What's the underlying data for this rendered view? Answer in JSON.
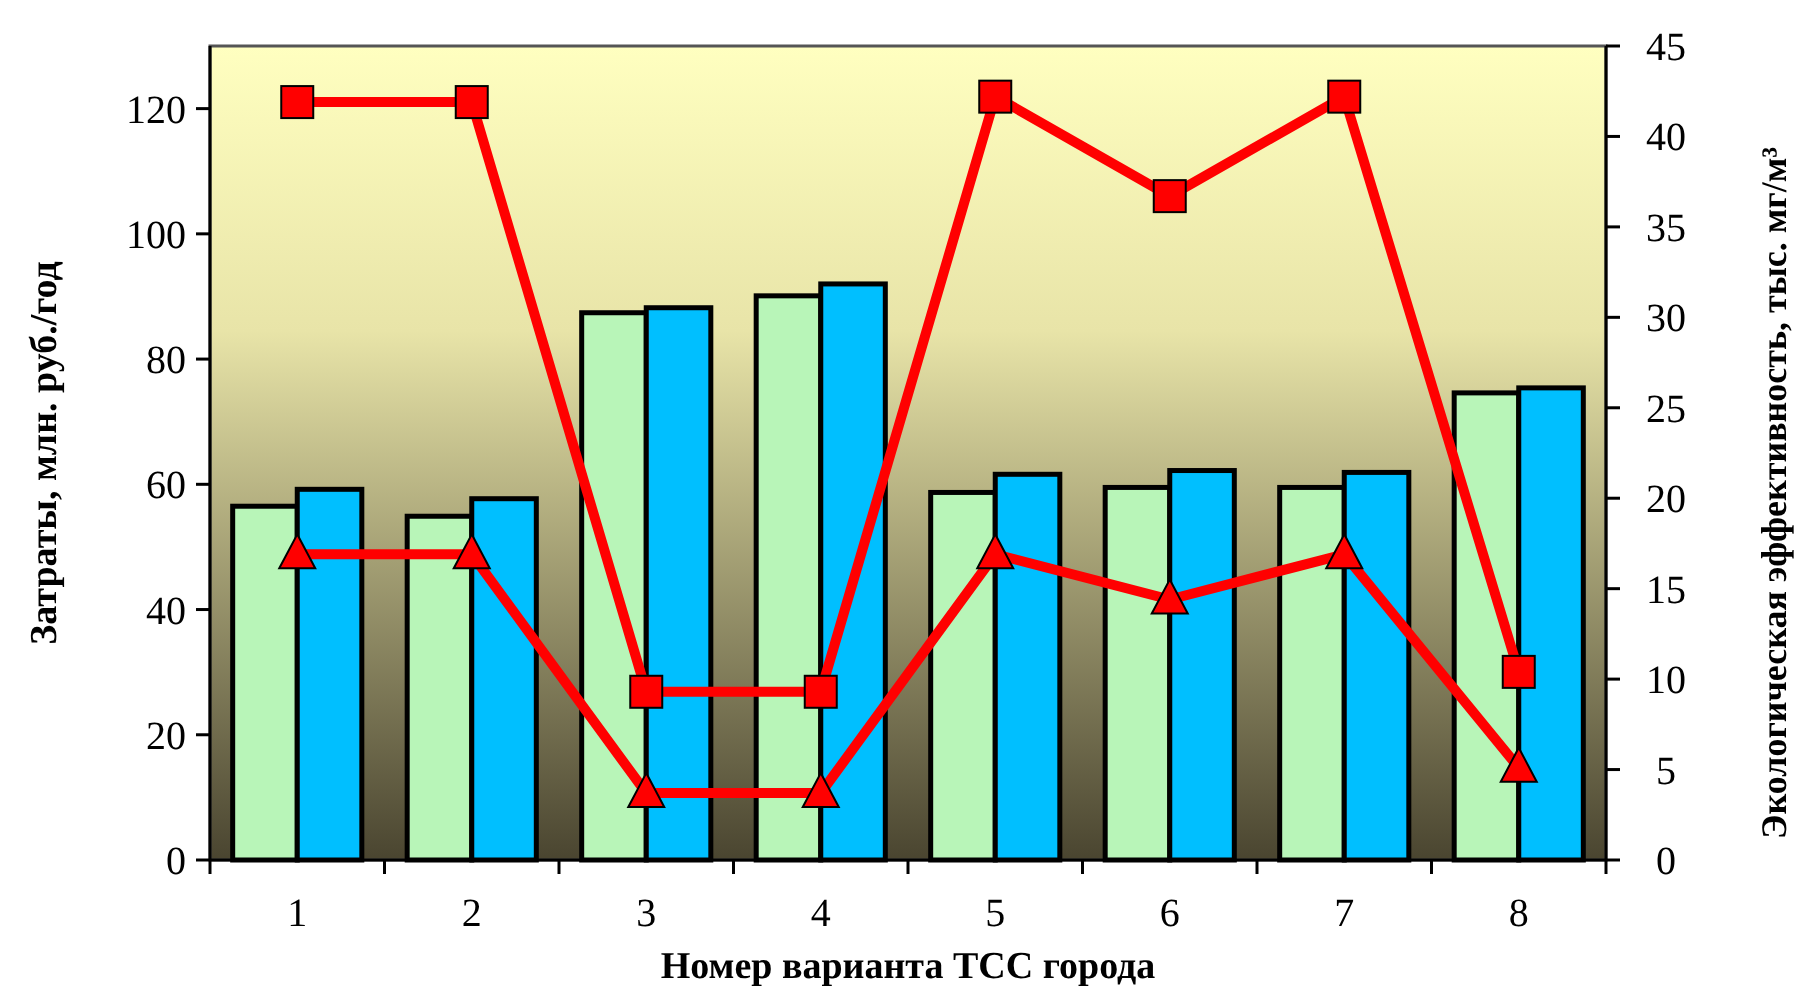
{
  "chart_data": {
    "type": "bar",
    "xlabel": "Номер варианта ТСС города",
    "ylabel": "Затраты, млн. руб./год",
    "y2label": "Экологическая эффективность, тыс. мг/м³",
    "categories": [
      "1",
      "2",
      "3",
      "4",
      "5",
      "6",
      "7",
      "8"
    ],
    "series": [
      {
        "color": "#b8f5b8",
        "values": [
          56.5,
          54.9,
          87.4,
          90.1,
          58.7,
          59.5,
          59.5,
          74.6
        ]
      },
      {
        "color": "#00bfff",
        "values": [
          59.2,
          57.7,
          88.2,
          92,
          61.6,
          62.2,
          61.9,
          75.4
        ]
      },
      {
        "type": "line",
        "axis": "y2",
        "color": "#ff0000",
        "marker": "square",
        "values": [
          41.9,
          41.9,
          9.3,
          9.3,
          42.2,
          36.7,
          42.2,
          10.4
        ]
      },
      {
        "type": "line",
        "axis": "y2",
        "color": "#ff0000",
        "marker": "triangle",
        "values": [
          16.9,
          16.9,
          3.7,
          3.7,
          16.9,
          14.4,
          16.9,
          5.1
        ]
      }
    ],
    "ylim": [
      0,
      130
    ],
    "yticks": [
      0,
      20,
      40,
      60,
      80,
      100,
      120
    ],
    "y2lim": [
      0,
      45
    ],
    "y2ticks": [
      0,
      5,
      10,
      15,
      20,
      25,
      30,
      35,
      40,
      45
    ],
    "grid": false
  }
}
